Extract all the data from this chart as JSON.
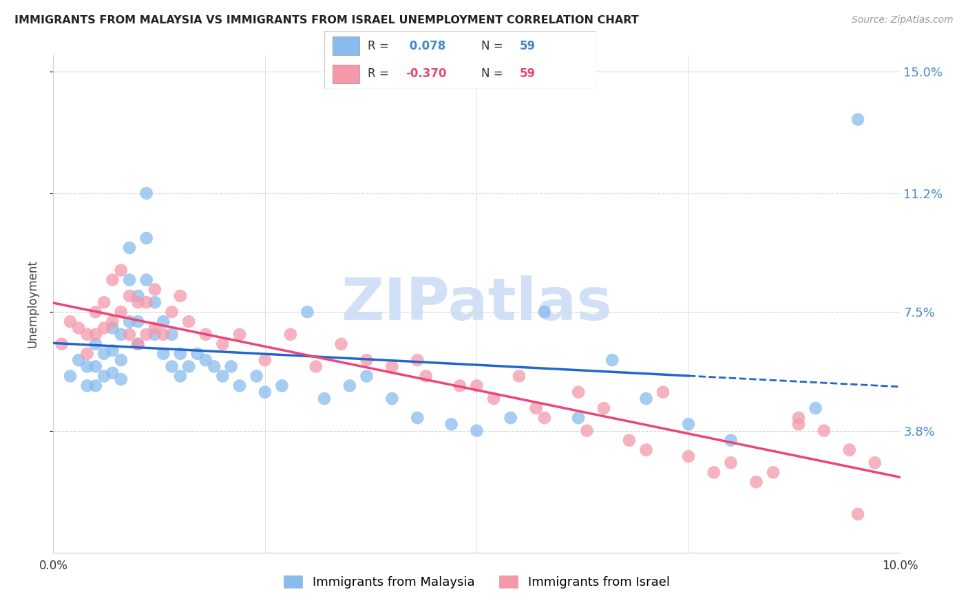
{
  "title": "IMMIGRANTS FROM MALAYSIA VS IMMIGRANTS FROM ISRAEL UNEMPLOYMENT CORRELATION CHART",
  "source": "Source: ZipAtlas.com",
  "ylabel": "Unemployment",
  "xlim": [
    0.0,
    0.1
  ],
  "ylim": [
    0.0,
    0.155
  ],
  "ytick_vals": [
    0.038,
    0.075,
    0.112,
    0.15
  ],
  "ytick_labels": [
    "3.8%",
    "7.5%",
    "11.2%",
    "15.0%"
  ],
  "legend_blue_r": "0.078",
  "legend_blue_n": "59",
  "legend_pink_r": "-0.370",
  "legend_pink_n": "59",
  "legend_label_blue": "Immigrants from Malaysia",
  "legend_label_pink": "Immigrants from Israel",
  "blue_color": "#88bbee",
  "pink_color": "#f599aa",
  "blue_line_color": "#2266cc",
  "pink_line_color": "#ee4477",
  "watermark_color": "#ccddf5",
  "blue_x": [
    0.002,
    0.003,
    0.004,
    0.004,
    0.005,
    0.005,
    0.005,
    0.006,
    0.006,
    0.007,
    0.007,
    0.007,
    0.008,
    0.008,
    0.008,
    0.009,
    0.009,
    0.009,
    0.01,
    0.01,
    0.01,
    0.011,
    0.011,
    0.011,
    0.012,
    0.012,
    0.013,
    0.013,
    0.014,
    0.014,
    0.015,
    0.015,
    0.016,
    0.017,
    0.018,
    0.019,
    0.02,
    0.021,
    0.022,
    0.024,
    0.025,
    0.027,
    0.03,
    0.032,
    0.035,
    0.037,
    0.04,
    0.043,
    0.047,
    0.05,
    0.054,
    0.058,
    0.062,
    0.066,
    0.07,
    0.075,
    0.08,
    0.09,
    0.095
  ],
  "blue_y": [
    0.055,
    0.06,
    0.058,
    0.052,
    0.065,
    0.058,
    0.052,
    0.062,
    0.055,
    0.07,
    0.063,
    0.056,
    0.068,
    0.06,
    0.054,
    0.095,
    0.085,
    0.072,
    0.08,
    0.072,
    0.065,
    0.112,
    0.098,
    0.085,
    0.078,
    0.068,
    0.072,
    0.062,
    0.068,
    0.058,
    0.062,
    0.055,
    0.058,
    0.062,
    0.06,
    0.058,
    0.055,
    0.058,
    0.052,
    0.055,
    0.05,
    0.052,
    0.075,
    0.048,
    0.052,
    0.055,
    0.048,
    0.042,
    0.04,
    0.038,
    0.042,
    0.075,
    0.042,
    0.06,
    0.048,
    0.04,
    0.035,
    0.045,
    0.135
  ],
  "pink_x": [
    0.001,
    0.002,
    0.003,
    0.004,
    0.004,
    0.005,
    0.005,
    0.006,
    0.006,
    0.007,
    0.007,
    0.008,
    0.008,
    0.009,
    0.009,
    0.01,
    0.01,
    0.011,
    0.011,
    0.012,
    0.012,
    0.013,
    0.014,
    0.015,
    0.016,
    0.018,
    0.02,
    0.022,
    0.025,
    0.028,
    0.031,
    0.034,
    0.037,
    0.04,
    0.044,
    0.048,
    0.052,
    0.055,
    0.058,
    0.062,
    0.065,
    0.068,
    0.072,
    0.075,
    0.08,
    0.085,
    0.088,
    0.091,
    0.094,
    0.097,
    0.043,
    0.05,
    0.057,
    0.063,
    0.07,
    0.078,
    0.083,
    0.088,
    0.095
  ],
  "pink_y": [
    0.065,
    0.072,
    0.07,
    0.068,
    0.062,
    0.075,
    0.068,
    0.078,
    0.07,
    0.085,
    0.072,
    0.088,
    0.075,
    0.08,
    0.068,
    0.078,
    0.065,
    0.078,
    0.068,
    0.082,
    0.07,
    0.068,
    0.075,
    0.08,
    0.072,
    0.068,
    0.065,
    0.068,
    0.06,
    0.068,
    0.058,
    0.065,
    0.06,
    0.058,
    0.055,
    0.052,
    0.048,
    0.055,
    0.042,
    0.05,
    0.045,
    0.035,
    0.05,
    0.03,
    0.028,
    0.025,
    0.042,
    0.038,
    0.032,
    0.028,
    0.06,
    0.052,
    0.045,
    0.038,
    0.032,
    0.025,
    0.022,
    0.04,
    0.012
  ]
}
